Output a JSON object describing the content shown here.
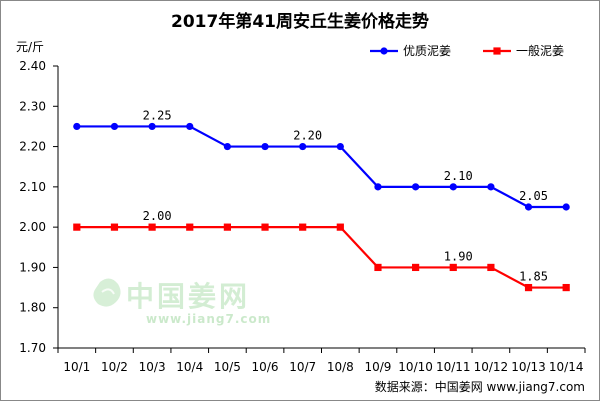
{
  "chart_data": {
    "type": "line",
    "title": "2017年第41周安丘生姜价格走势",
    "ylabel": "元/斤",
    "xlabel": "",
    "categories": [
      "10/1",
      "10/2",
      "10/3",
      "10/4",
      "10/5",
      "10/6",
      "10/7",
      "10/8",
      "10/9",
      "10/10",
      "10/11",
      "10/12",
      "10/13",
      "10/14"
    ],
    "ylim": [
      1.7,
      2.4
    ],
    "yticks": [
      "1.70",
      "1.80",
      "1.90",
      "2.00",
      "2.10",
      "2.20",
      "2.30",
      "2.40"
    ],
    "grid": false,
    "legend_position": "top-right",
    "series": [
      {
        "name": "优质泥姜",
        "color": "#0000ff",
        "marker": "circle",
        "values": [
          2.25,
          2.25,
          2.25,
          2.25,
          2.2,
          2.2,
          2.2,
          2.2,
          2.1,
          2.1,
          2.1,
          2.1,
          2.05,
          2.05
        ],
        "data_labels": [
          {
            "index": 2,
            "text": "2.25"
          },
          {
            "index": 6,
            "text": "2.20"
          },
          {
            "index": 10,
            "text": "2.10"
          },
          {
            "index": 12,
            "text": "2.05"
          }
        ]
      },
      {
        "name": "一般泥姜",
        "color": "#ff0000",
        "marker": "square",
        "values": [
          2.0,
          2.0,
          2.0,
          2.0,
          2.0,
          2.0,
          2.0,
          2.0,
          1.9,
          1.9,
          1.9,
          1.9,
          1.85,
          1.85
        ],
        "data_labels": [
          {
            "index": 2,
            "text": "2.00"
          },
          {
            "index": 10,
            "text": "1.90"
          },
          {
            "index": 12,
            "text": "1.85"
          }
        ]
      }
    ]
  },
  "source": "数据来源：中国姜网 www.jiang7.com",
  "watermark": {
    "logo_text": "中国姜网",
    "url_text": "www.jiang7.com",
    "color": "#8dd08d"
  }
}
